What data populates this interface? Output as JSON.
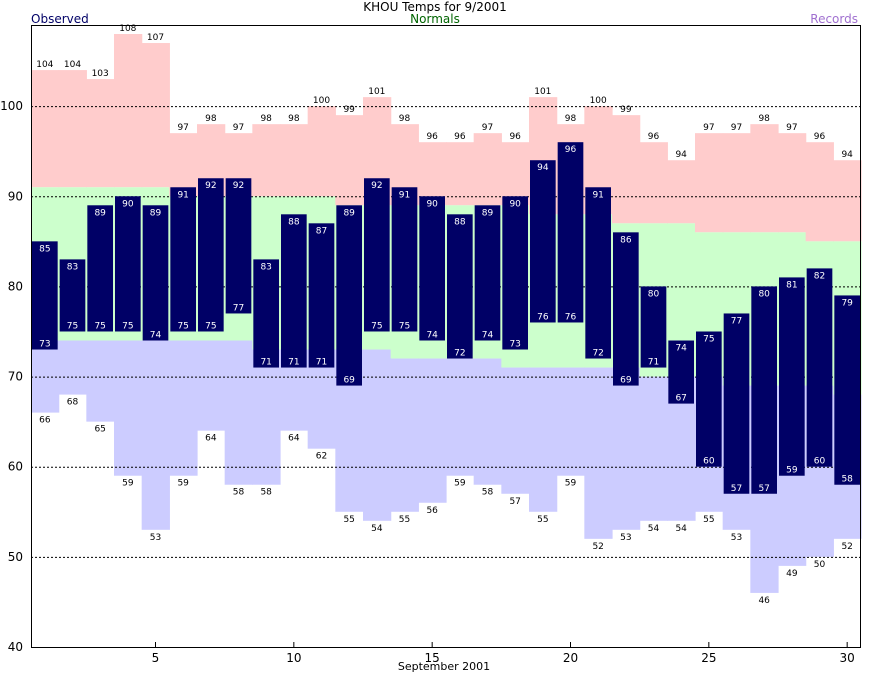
{
  "chart_data": {
    "type": "bar",
    "title": "KHOU Temps for 9/2001",
    "subtitle": "Normals",
    "xlabel": "September 2001",
    "ylabel": "",
    "legend": [
      "Observed",
      "Records"
    ],
    "ylim": [
      40,
      109
    ],
    "yticks": [
      40,
      50,
      60,
      70,
      80,
      90,
      100
    ],
    "xticks": [
      5,
      10,
      15,
      20,
      25,
      30
    ],
    "days": [
      1,
      2,
      3,
      4,
      5,
      6,
      7,
      8,
      9,
      10,
      11,
      12,
      13,
      14,
      15,
      16,
      17,
      18,
      19,
      20,
      21,
      22,
      23,
      24,
      25,
      26,
      27,
      28,
      29,
      30
    ],
    "record_high": [
      104,
      104,
      103,
      108,
      107,
      97,
      98,
      97,
      98,
      98,
      100,
      99,
      101,
      98,
      96,
      96,
      97,
      96,
      101,
      98,
      100,
      99,
      96,
      94,
      97,
      97,
      98,
      97,
      96,
      94
    ],
    "record_low": [
      66,
      68,
      65,
      59,
      53,
      59,
      64,
      58,
      58,
      64,
      62,
      55,
      54,
      55,
      56,
      59,
      58,
      57,
      55,
      59,
      52,
      53,
      54,
      54,
      55,
      53,
      46,
      49,
      50,
      52
    ],
    "normal_high": [
      91,
      91,
      91,
      91,
      91,
      90,
      90,
      90,
      90,
      90,
      90,
      89,
      89,
      89,
      89,
      89,
      89,
      89,
      88,
      88,
      88,
      87,
      87,
      87,
      86,
      86,
      86,
      86,
      85,
      85
    ],
    "normal_low": [
      74,
      74,
      74,
      74,
      74,
      74,
      74,
      74,
      73,
      73,
      73,
      73,
      73,
      72,
      72,
      72,
      72,
      71,
      71,
      71,
      71,
      71,
      70,
      70,
      70,
      69,
      69,
      69,
      69,
      68
    ],
    "observed_high": [
      85,
      83,
      89,
      90,
      89,
      91,
      92,
      92,
      83,
      88,
      87,
      89,
      92,
      91,
      90,
      88,
      89,
      90,
      94,
      96,
      91,
      86,
      80,
      74,
      75,
      77,
      80,
      81,
      82,
      79
    ],
    "observed_low": [
      73,
      75,
      75,
      75,
      74,
      75,
      75,
      77,
      71,
      71,
      71,
      69,
      75,
      75,
      74,
      72,
      74,
      73,
      76,
      76,
      72,
      69,
      71,
      67,
      60,
      57,
      57,
      59,
      60,
      58
    ],
    "colors": {
      "observed": "#000066",
      "observed_label": "#ffffff",
      "record_high_band": "#ffcccc",
      "normal_band": "#ccffcc",
      "record_low_band": "#ccccff",
      "title": "#000000",
      "normals_label": "#006400",
      "records_label": "#a070d0",
      "grid": "#000000"
    },
    "grid": "dashed horizontal"
  }
}
